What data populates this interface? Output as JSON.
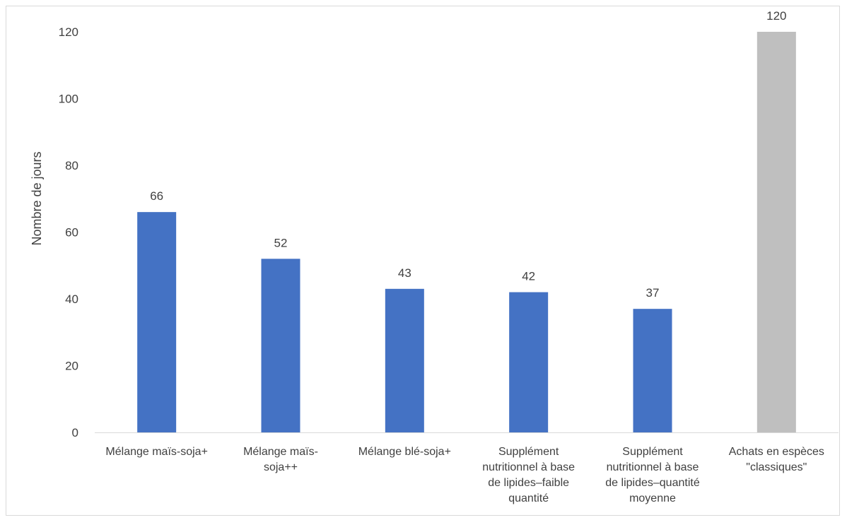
{
  "chart_data": {
    "type": "bar",
    "title": "",
    "xlabel": "",
    "ylabel": "Nombre de jours",
    "ylim": [
      0,
      120
    ],
    "yticks": [
      "0",
      "20",
      "40",
      "60",
      "80",
      "100",
      "120"
    ],
    "grid": false,
    "legend": "none",
    "categories": [
      [
        "Mélange maïs-soja+"
      ],
      [
        "Mélange maïs-",
        "soja++"
      ],
      [
        "Mélange blé-soja+"
      ],
      [
        "Supplément",
        "nutritionnel à base",
        "de lipides–faible",
        "quantité"
      ],
      [
        "Supplément",
        "nutritionnel à base",
        "de lipides–quantité",
        "moyenne"
      ],
      [
        "Achats en espèces",
        "\"classiques\""
      ]
    ],
    "values": [
      66,
      52,
      43,
      42,
      37,
      120
    ],
    "value_labels": [
      "66",
      "52",
      "43",
      "42",
      "37",
      "120"
    ],
    "bar_colors": [
      "#4472c4",
      "#4472c4",
      "#4472c4",
      "#4472c4",
      "#4472c4",
      "#bfbfbf"
    ]
  },
  "colors": {
    "axis": "#d9d9d9",
    "text": "#404040"
  }
}
